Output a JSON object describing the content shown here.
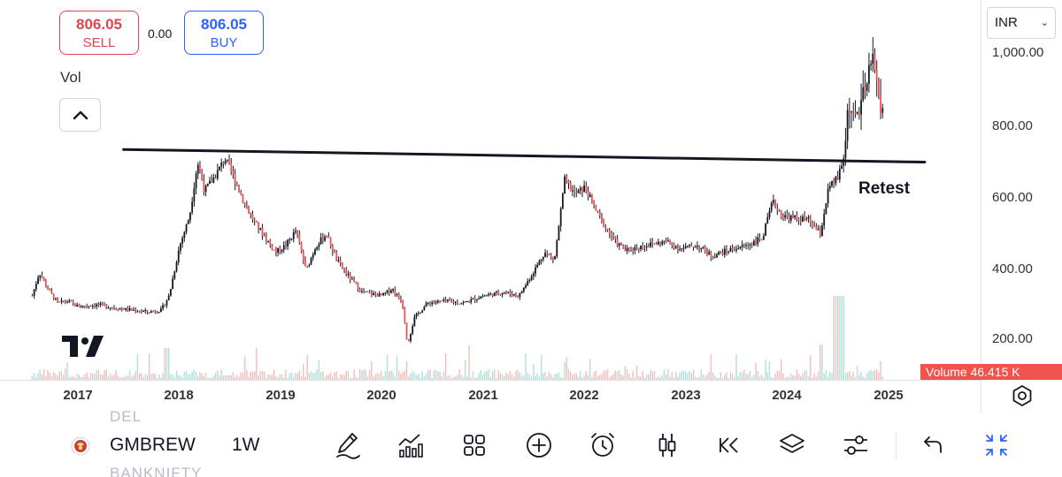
{
  "quote": {
    "sell_price": "806.05",
    "sell_label": "SELL",
    "buy_price": "806.05",
    "buy_label": "BUY",
    "spread": "0.00"
  },
  "vol_label": "Vol",
  "annotation": "Retest",
  "currency": "INR",
  "volume_badge": "Volume  46.415 K",
  "symbol": "GMBREW",
  "interval": "1W",
  "ghost_top": "DEL",
  "ghost_bottom": "BANKNIFTY",
  "colors": {
    "up": "#26a69a",
    "down": "#ef5350",
    "candle": "#131722",
    "sell": "#e0474c",
    "buy": "#2962ff",
    "accent": "#2962ff"
  },
  "icons": [
    "pencil-icon",
    "indicators-icon",
    "apps-grid-icon",
    "add-circle-icon",
    "alarm-clock-icon",
    "candles-icon",
    "replay-icon",
    "layers-icon",
    "sliders-icon",
    "undo-icon",
    "collapse-icon",
    "gear-icon"
  ],
  "chart_data": {
    "type": "candlestick",
    "xlabel": "",
    "ylabel": "",
    "x_ticks": [
      "2017",
      "2018",
      "2019",
      "2020",
      "2021",
      "2022",
      "2023",
      "2024",
      "2025"
    ],
    "y_ticks": [
      "200.00",
      "400.00",
      "600.00",
      "800.00",
      "1,000.00"
    ],
    "ylim": [
      150,
      1080
    ],
    "xlim": [
      2016.55,
      2025.35
    ],
    "series": [
      {
        "kind": "close-path",
        "points": [
          [
            2016.55,
            320
          ],
          [
            2016.62,
            385
          ],
          [
            2016.7,
            340
          ],
          [
            2016.8,
            300
          ],
          [
            2016.9,
            305
          ],
          [
            2017.0,
            290
          ],
          [
            2017.2,
            295
          ],
          [
            2017.4,
            285
          ],
          [
            2017.55,
            280
          ],
          [
            2017.7,
            275
          ],
          [
            2017.82,
            280
          ],
          [
            2017.9,
            320
          ],
          [
            2018.0,
            455
          ],
          [
            2018.1,
            540
          ],
          [
            2018.18,
            690
          ],
          [
            2018.25,
            610
          ],
          [
            2018.35,
            650
          ],
          [
            2018.45,
            700
          ],
          [
            2018.55,
            640
          ],
          [
            2018.65,
            570
          ],
          [
            2018.75,
            520
          ],
          [
            2018.85,
            480
          ],
          [
            2018.95,
            440
          ],
          [
            2019.05,
            460
          ],
          [
            2019.15,
            500
          ],
          [
            2019.25,
            390
          ],
          [
            2019.35,
            460
          ],
          [
            2019.45,
            490
          ],
          [
            2019.55,
            420
          ],
          [
            2019.65,
            380
          ],
          [
            2019.8,
            330
          ],
          [
            2020.0,
            320
          ],
          [
            2020.1,
            340
          ],
          [
            2020.2,
            300
          ],
          [
            2020.25,
            185
          ],
          [
            2020.32,
            260
          ],
          [
            2020.45,
            300
          ],
          [
            2020.6,
            305
          ],
          [
            2020.8,
            300
          ],
          [
            2021.0,
            320
          ],
          [
            2021.2,
            330
          ],
          [
            2021.35,
            320
          ],
          [
            2021.5,
            390
          ],
          [
            2021.6,
            440
          ],
          [
            2021.7,
            420
          ],
          [
            2021.8,
            640
          ],
          [
            2021.9,
            600
          ],
          [
            2022.0,
            620
          ],
          [
            2022.1,
            560
          ],
          [
            2022.2,
            510
          ],
          [
            2022.3,
            470
          ],
          [
            2022.4,
            445
          ],
          [
            2022.6,
            460
          ],
          [
            2022.8,
            470
          ],
          [
            2022.95,
            450
          ],
          [
            2023.1,
            460
          ],
          [
            2023.25,
            430
          ],
          [
            2023.4,
            445
          ],
          [
            2023.6,
            460
          ],
          [
            2023.75,
            480
          ],
          [
            2023.85,
            580
          ],
          [
            2023.95,
            540
          ],
          [
            2024.05,
            535
          ],
          [
            2024.2,
            530
          ],
          [
            2024.32,
            490
          ],
          [
            2024.4,
            615
          ],
          [
            2024.5,
            650
          ],
          [
            2024.55,
            700
          ],
          [
            2024.6,
            860
          ],
          [
            2024.65,
            800
          ],
          [
            2024.72,
            850
          ],
          [
            2024.78,
            900
          ],
          [
            2024.85,
            1000
          ],
          [
            2024.9,
            850
          ],
          [
            2024.95,
            806
          ]
        ]
      },
      {
        "kind": "trendline",
        "points": [
          [
            2017.45,
            725
          ],
          [
            2025.35,
            690
          ]
        ]
      }
    ]
  }
}
